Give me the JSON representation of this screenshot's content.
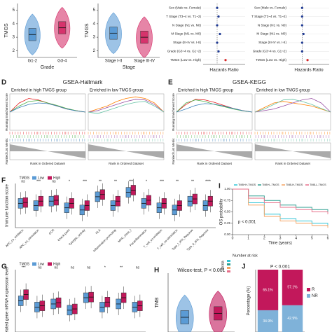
{
  "chart_data": [
    {
      "type": "violin",
      "ylabel": "TMGS",
      "xlabel": "Grade",
      "categories": [
        "G1-2",
        "G3-4"
      ],
      "values": [
        3.2,
        3.7
      ],
      "colors": [
        "#5b9bd5",
        "#d6336c"
      ],
      "ylim": [
        1.5,
        5.5
      ],
      "yticks": [
        2,
        3,
        4,
        5
      ]
    },
    {
      "type": "violin",
      "ylabel": "TMGS",
      "xlabel": "Stage",
      "categories": [
        "Stage I-II",
        "Stage III-IV"
      ],
      "values": [
        3.3,
        3.0
      ],
      "colors": [
        "#5b9bd5",
        "#d6336c"
      ],
      "ylim": [
        1.5,
        5.5
      ],
      "yticks": [
        2,
        3,
        4,
        5
      ]
    },
    {
      "type": "forest",
      "xlabel": "Hazards Ratio",
      "categories": [
        "Sex (Male vs. Female)",
        "T Stage (T3~4 vs. T1~2)",
        "N Stage (N1 vs. N0)",
        "M Stage (M1 vs. M0)",
        "Stage (III-IV vs. I-II)",
        "Grade (G3~4 vs. G1~2)",
        "TMGS (Low vs. High)"
      ],
      "values": [
        1.0,
        1.1,
        1.0,
        1.2,
        1.0,
        1.1,
        1.6
      ],
      "color": "#1f3a93",
      "reference": 1,
      "xlim": [
        0,
        3
      ]
    },
    {
      "type": "forest",
      "xlabel": "Hazards Ratio",
      "categories": [
        "Sex (Male vs. Female)",
        "T Stage (T3~4 vs. T1~2)",
        "N Stage (N1 vs. N0)",
        "M Stage (M1 vs. M0)",
        "Stage (III-IV vs. I-II)",
        "Grade (G3~4 vs. G1~2)",
        "TMGS (Low vs. High)"
      ],
      "values": [
        1.0,
        1.0,
        1.0,
        1.1,
        1.0,
        1.0,
        1.4
      ],
      "color": "#1f3a93",
      "reference": 1,
      "xlim": [
        0,
        3
      ]
    },
    {
      "type": "gsea",
      "panel": "D",
      "title": "GSEA-Hallmark",
      "ylabel": "Running Enrichment Score",
      "ylabel2": "Ranked List Metric",
      "xlabel": "Rank in Ordered Dataset",
      "ylim": [
        -0.6,
        0.6
      ],
      "subplots": [
        {
          "title": "Enriched in high TMGS group",
          "series": [
            {
              "color": "#e41a1c",
              "values": [
                0,
                0.3,
                0.45,
                0.4,
                0.3,
                0.2,
                0.1,
                0.05,
                0
              ]
            },
            {
              "color": "#4daf4a",
              "values": [
                0,
                0.2,
                0.35,
                0.38,
                0.3,
                0.22,
                0.12,
                0.05,
                0
              ]
            },
            {
              "color": "#377eb8",
              "values": [
                0,
                0.15,
                0.25,
                0.3,
                0.28,
                0.2,
                0.1,
                0.04,
                0
              ]
            }
          ]
        },
        {
          "title": "Enriched in low TMGS group",
          "series": [
            {
              "color": "#ff7f00",
              "values": [
                0,
                0.1,
                0.2,
                0.35,
                0.45,
                0.5,
                0.45,
                0.3,
                0
              ]
            },
            {
              "color": "#984ea3",
              "values": [
                0,
                0.05,
                0.15,
                0.25,
                0.35,
                0.42,
                0.4,
                0.25,
                0
              ]
            },
            {
              "color": "#66c2a5",
              "values": [
                0,
                -0.05,
                0.05,
                0.15,
                0.25,
                0.32,
                0.35,
                0.2,
                0
              ]
            }
          ]
        }
      ]
    },
    {
      "type": "gsea",
      "panel": "E",
      "title": "GSEA-KEGG",
      "ylabel": "Running Enrichment Score",
      "ylabel2": "Ranked List Metric",
      "xlabel": "Rank in Ordered Dataset",
      "ylim": [
        -0.6,
        0.6
      ],
      "subplots": [
        {
          "title": "Enriched in high TMGS group",
          "series": [
            {
              "color": "#e41a1c",
              "values": [
                0,
                0.25,
                0.42,
                0.4,
                0.32,
                0.22,
                0.12,
                0.05,
                0
              ]
            },
            {
              "color": "#4daf4a",
              "values": [
                0,
                0.3,
                0.4,
                0.35,
                0.25,
                0.18,
                0.1,
                0.04,
                0
              ]
            },
            {
              "color": "#377eb8",
              "values": [
                0,
                0.1,
                0.22,
                0.28,
                0.26,
                0.2,
                0.12,
                0.05,
                0
              ]
            }
          ]
        },
        {
          "title": "Enriched in low TMGS group",
          "series": [
            {
              "color": "#ff7f00",
              "values": [
                0,
                0.15,
                0.3,
                0.35,
                0.3,
                0.25,
                0.2,
                0.1,
                0
              ]
            },
            {
              "color": "#984ea3",
              "values": [
                0,
                0.05,
                0.1,
                0.2,
                0.3,
                0.4,
                0.45,
                0.3,
                0
              ]
            },
            {
              "color": "#66c2a5",
              "values": [
                0,
                0.1,
                0.25,
                0.4,
                0.42,
                0.35,
                0.25,
                0.12,
                0
              ]
            }
          ]
        }
      ]
    },
    {
      "type": "box",
      "panel": "F",
      "ylabel": "Immune function score",
      "legend_title": "TMGS",
      "ylim": [
        0,
        1
      ],
      "categories": [
        "APC_co_inhibition",
        "APC_co_stimulation",
        "CCR",
        "Check-point",
        "Cytolytic_activity",
        "HLA",
        "Inflammation-promoting",
        "MHC_class_I",
        "Parainflammation",
        "T_cell_co-inhibition",
        "T_cell_co-stimulation",
        "Type_I_IFN_Reponse",
        "Type_II_IFN_Reponse"
      ],
      "significance": [
        "ns",
        "***",
        "ns",
        "*",
        "***",
        "**",
        "**",
        "***",
        "*",
        "***",
        "**",
        "**",
        "****"
      ],
      "series": [
        {
          "name": "Low",
          "color": "#5b9bd5",
          "values": [
            0.55,
            0.5,
            0.6,
            0.45,
            0.4,
            0.7,
            0.5,
            0.8,
            0.55,
            0.45,
            0.4,
            0.6,
            0.5
          ]
        },
        {
          "name": "High",
          "color": "#c2185b",
          "values": [
            0.57,
            0.6,
            0.62,
            0.55,
            0.5,
            0.75,
            0.6,
            0.85,
            0.62,
            0.55,
            0.5,
            0.65,
            0.6
          ]
        }
      ]
    },
    {
      "type": "km",
      "panel": "I",
      "xlabel": "Time (years)",
      "ylabel": "OS probability",
      "annotation": "p < 0.001",
      "risk_title": "Number at risk",
      "strata_label": "Strata",
      "x": [
        0,
        1,
        2,
        3,
        4,
        5,
        6
      ],
      "xlim": [
        0,
        6
      ],
      "xticks": [
        0,
        1,
        2,
        3,
        4,
        5,
        6
      ],
      "ylim": [
        0,
        1
      ],
      "yticks": [
        {
          "value": 0,
          "label": "0.00"
        },
        {
          "value": 0.25,
          "label": "0.25"
        },
        {
          "value": 0.5,
          "label": "0.50"
        },
        {
          "value": 0.75,
          "label": "0.75"
        },
        {
          "value": 1,
          "label": "1.00"
        }
      ],
      "series": [
        {
          "name": "TMB+H-TMGS",
          "color": "#2ec4d6",
          "values": [
            1,
            0.7,
            0.45,
            0.35,
            0.3,
            0.25,
            0.2
          ]
        },
        {
          "name": "TMB+L-TMGS",
          "color": "#2a9d8f",
          "values": [
            1,
            0.85,
            0.75,
            0.65,
            0.6,
            0.55,
            0.5
          ]
        },
        {
          "name": "TMB-H-TMGS",
          "color": "#f4a261",
          "values": [
            1,
            0.65,
            0.4,
            0.3,
            0.25,
            0.2,
            0.15
          ]
        },
        {
          "name": "TMB-L-TMGS",
          "color": "#e76f8a",
          "values": [
            1,
            0.8,
            0.7,
            0.6,
            0.55,
            0.5,
            0.45
          ]
        }
      ]
    },
    {
      "type": "box",
      "panel": "G",
      "ylabel": "related gene mRNA expression level",
      "legend_title": "TMGS",
      "ylim": [
        0,
        1
      ],
      "categories": [
        null,
        null,
        null,
        null,
        null,
        null,
        null,
        null
      ],
      "significance": [
        "***",
        "ns",
        "ns",
        "ns",
        "ns",
        "*",
        "**",
        "ns"
      ],
      "series": [
        {
          "name": "Low",
          "color": "#5b9bd5",
          "values": [
            0.5,
            0.4,
            0.45,
            0.35,
            0.55,
            0.4,
            0.45,
            0.4
          ]
        },
        {
          "name": "High",
          "color": "#c2185b",
          "values": [
            0.6,
            0.42,
            0.47,
            0.37,
            0.56,
            0.48,
            0.55,
            0.42
          ]
        }
      ]
    },
    {
      "type": "violin",
      "panel": "H",
      "title": "Wilcox-test, P < 0.001",
      "ylabel": "TMB",
      "categories": [
        null,
        null
      ],
      "values": [
        1.5,
        1.9
      ],
      "colors": [
        "#5b9bd5",
        "#c2185b"
      ],
      "ylim": [
        0,
        6
      ]
    },
    {
      "type": "stacked_bar",
      "panel": "J",
      "title": "P < 0.001",
      "ylabel": "Percentage (%)",
      "categories": [
        null,
        null
      ],
      "ylim": [
        0,
        100
      ],
      "series": [
        {
          "name": "NR",
          "color": "#7fb2d9",
          "values": [
            34.9,
            42.9
          ],
          "value_labels": [
            "34.9%",
            "42.9%"
          ]
        },
        {
          "name": "R",
          "color": "#c2185b",
          "values": [
            65.1,
            57.1
          ],
          "value_labels": [
            "65.1%",
            "57.1%"
          ]
        }
      ]
    }
  ]
}
